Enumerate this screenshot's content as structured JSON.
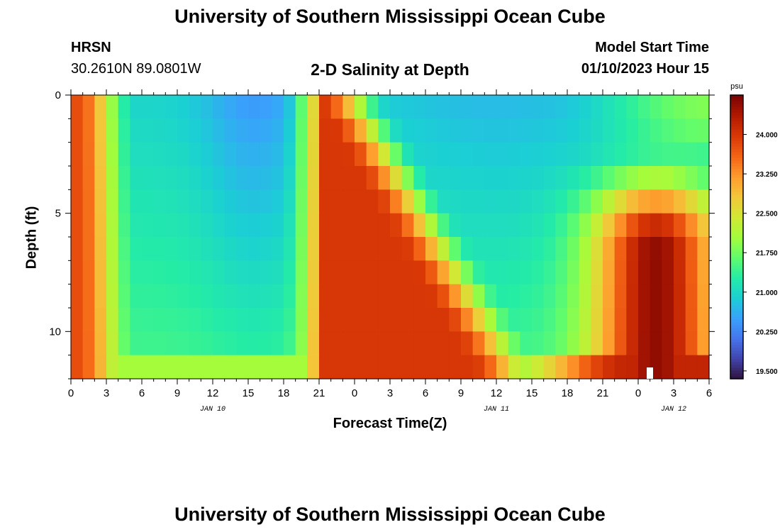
{
  "header": {
    "title": "University of Southern Mississippi Ocean Cube",
    "station": "HRSN",
    "location": "30.2610N  89.0801W",
    "plot_title": "2-D Salinity at Depth",
    "model_label": "Model Start Time",
    "model_time": "01/10/2023 Hour 15"
  },
  "footer": {
    "title": "University of Southern Mississippi Ocean Cube"
  },
  "colors": {
    "stops": [
      "#30123b",
      "#4145ab",
      "#4675ed",
      "#39a2fc",
      "#1bcfd4",
      "#24eca6",
      "#61fc6c",
      "#a4fc3b",
      "#d1e834",
      "#f3c63a",
      "#fe9b2d",
      "#f36315",
      "#d93806",
      "#b11901",
      "#7a0403"
    ]
  },
  "chart_data": {
    "type": "heatmap",
    "title": "2-D Salinity at Depth",
    "xlabel": "Forecast Time(Z)",
    "ylabel": "Depth (ft)",
    "x_tick_labels": [
      "0",
      "3",
      "6",
      "9",
      "12",
      "15",
      "18",
      "21",
      "0",
      "3",
      "6",
      "9",
      "12",
      "15",
      "18",
      "21",
      "0",
      "3",
      "6"
    ],
    "day_labels": [
      {
        "label": "JAN 10",
        "hour": 12
      },
      {
        "label": "JAN 11",
        "hour": 36
      },
      {
        "label": "JAN 12",
        "hour": 51
      }
    ],
    "x_range_hours": [
      0,
      54
    ],
    "y_ticks": [
      0,
      5,
      10
    ],
    "y_range_ft": [
      0,
      12
    ],
    "depth_levels": 12,
    "time_steps": 54,
    "colorbar": {
      "unit": "psu",
      "ticks": [
        "19.500",
        "20.250",
        "21.000",
        "21.750",
        "22.500",
        "23.250",
        "24.000"
      ],
      "tick_values": [
        19.5,
        20.25,
        21.0,
        21.75,
        22.5,
        23.25,
        24.0
      ],
      "range": [
        19.35,
        24.75
      ]
    },
    "features": [
      {
        "kind": "surface_fresh",
        "hours": [
          0,
          54
        ]
      },
      {
        "kind": "saline_front",
        "hours": [
          0,
          4
        ]
      },
      {
        "kind": "saline_intrusion",
        "hours": [
          20,
          30
        ]
      },
      {
        "kind": "deep_saline_core",
        "hours": [
          45,
          54
        ]
      }
    ]
  }
}
